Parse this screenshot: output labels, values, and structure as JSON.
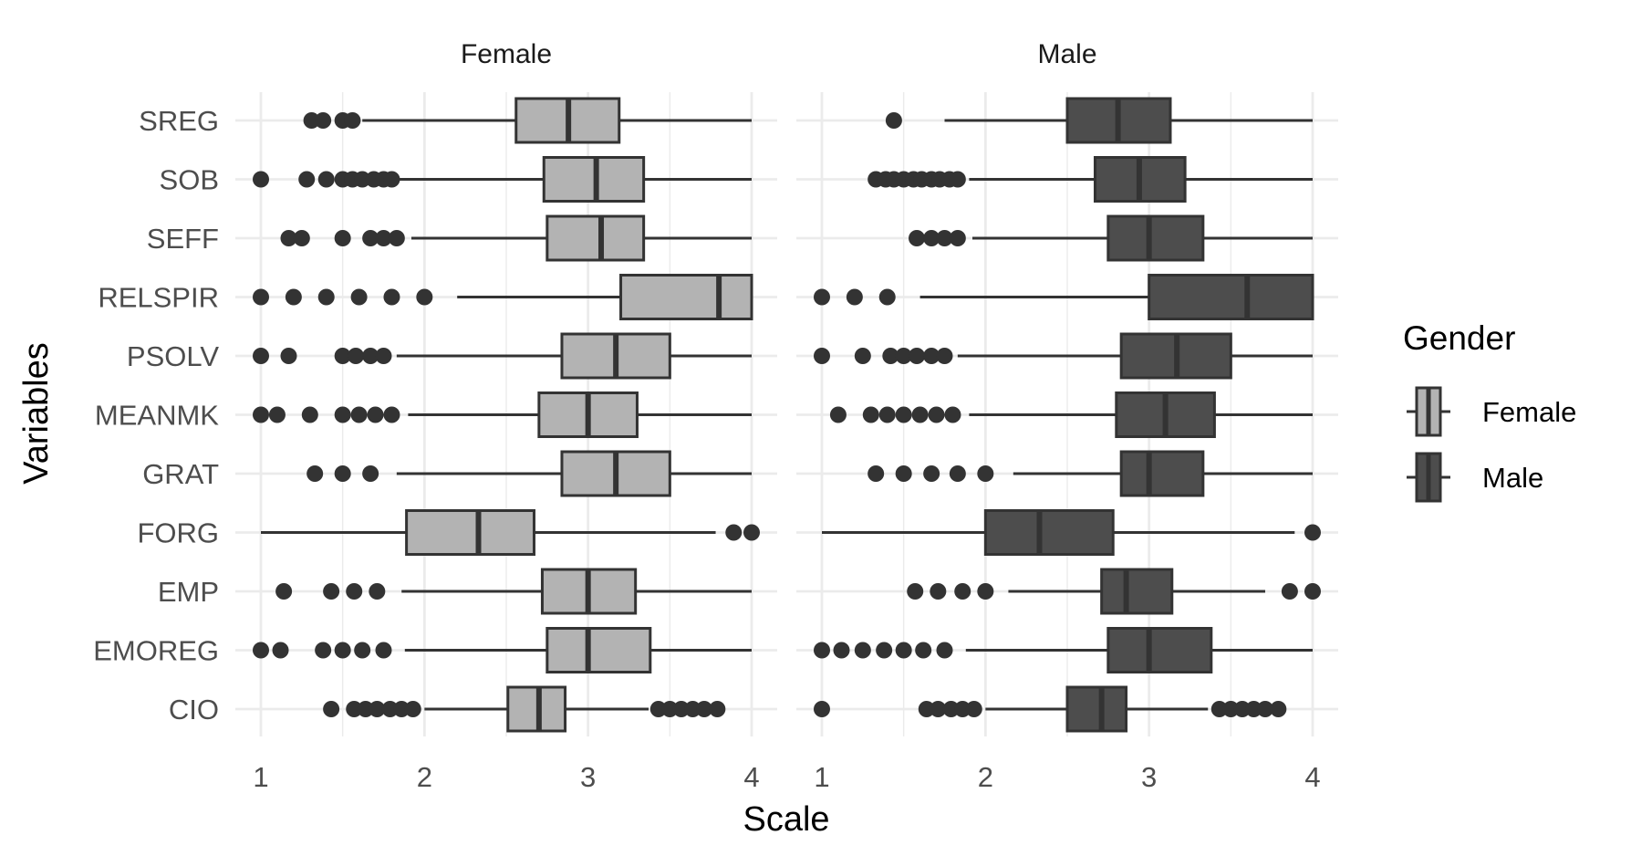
{
  "chart_data": {
    "type": "boxplot",
    "orientation": "horizontal",
    "xlabel": "Scale",
    "ylabel": "Variables",
    "xlim": [
      1,
      4
    ],
    "xticks": [
      1,
      2,
      3,
      4
    ],
    "grid": true,
    "categories": [
      "SREG",
      "SOB",
      "SEFF",
      "RELSPIR",
      "PSOLV",
      "MEANMK",
      "GRAT",
      "FORG",
      "EMP",
      "EMOREG",
      "CIO"
    ],
    "legend": {
      "title": "Gender",
      "position": "right",
      "entries": [
        {
          "label": "Female",
          "color": "#b3b3b3"
        },
        {
          "label": "Male",
          "color": "#4d4d4d"
        }
      ]
    },
    "colors": {
      "Female": "#b3b3b3",
      "Male": "#4d4d4d",
      "outline": "#333333",
      "grid": "#ebebeb"
    },
    "panels": [
      {
        "title": "Female",
        "series": "Female",
        "boxes": [
          {
            "category": "SREG",
            "whisker_low": 1.62,
            "q1": 2.56,
            "median": 2.88,
            "q3": 3.19,
            "whisker_high": 4.0,
            "outliers": [
              1.31,
              1.38,
              1.5,
              1.56
            ]
          },
          {
            "category": "SOB",
            "whisker_low": 1.81,
            "q1": 2.73,
            "median": 3.05,
            "q3": 3.34,
            "whisker_high": 4.0,
            "outliers": [
              1.0,
              1.28,
              1.4,
              1.5,
              1.56,
              1.62,
              1.69,
              1.75,
              1.8
            ]
          },
          {
            "category": "SEFF",
            "whisker_low": 1.92,
            "q1": 2.75,
            "median": 3.08,
            "q3": 3.34,
            "whisker_high": 4.0,
            "outliers": [
              1.17,
              1.25,
              1.5,
              1.67,
              1.75,
              1.83
            ]
          },
          {
            "category": "RELSPIR",
            "whisker_low": 2.2,
            "q1": 3.2,
            "median": 3.8,
            "q3": 4.0,
            "whisker_high": 4.0,
            "outliers": [
              1.0,
              1.2,
              1.4,
              1.6,
              1.8,
              2.0
            ]
          },
          {
            "category": "PSOLV",
            "whisker_low": 1.83,
            "q1": 2.84,
            "median": 3.17,
            "q3": 3.5,
            "whisker_high": 4.0,
            "outliers": [
              1.0,
              1.17,
              1.5,
              1.58,
              1.67,
              1.75
            ]
          },
          {
            "category": "MEANMK",
            "whisker_low": 1.9,
            "q1": 2.7,
            "median": 3.0,
            "q3": 3.3,
            "whisker_high": 4.0,
            "outliers": [
              1.0,
              1.1,
              1.3,
              1.5,
              1.6,
              1.7,
              1.8
            ]
          },
          {
            "category": "GRAT",
            "whisker_low": 1.83,
            "q1": 2.84,
            "median": 3.17,
            "q3": 3.5,
            "whisker_high": 4.0,
            "outliers": [
              1.33,
              1.5,
              1.67
            ]
          },
          {
            "category": "FORG",
            "whisker_low": 1.0,
            "q1": 1.89,
            "median": 2.33,
            "q3": 2.67,
            "whisker_high": 3.78,
            "outliers": [
              3.89,
              4.0
            ]
          },
          {
            "category": "EMP",
            "whisker_low": 1.86,
            "q1": 2.72,
            "median": 3.0,
            "q3": 3.29,
            "whisker_high": 4.0,
            "outliers": [
              1.14,
              1.43,
              1.57,
              1.71
            ]
          },
          {
            "category": "EMOREG",
            "whisker_low": 1.88,
            "q1": 2.75,
            "median": 3.0,
            "q3": 3.38,
            "whisker_high": 4.0,
            "outliers": [
              1.0,
              1.12,
              1.38,
              1.5,
              1.62,
              1.75
            ]
          },
          {
            "category": "CIO",
            "whisker_low": 2.0,
            "q1": 2.51,
            "median": 2.7,
            "q3": 2.86,
            "whisker_high": 3.37,
            "outliers": [
              1.43,
              1.57,
              1.64,
              1.71,
              1.79,
              1.86,
              1.93,
              3.43,
              3.5,
              3.57,
              3.64,
              3.71,
              3.79
            ]
          }
        ]
      },
      {
        "title": "Male",
        "series": "Male",
        "boxes": [
          {
            "category": "SREG",
            "whisker_low": 1.75,
            "q1": 2.5,
            "median": 2.81,
            "q3": 3.13,
            "whisker_high": 4.0,
            "outliers": [
              1.44
            ]
          },
          {
            "category": "SOB",
            "whisker_low": 1.9,
            "q1": 2.67,
            "median": 2.94,
            "q3": 3.22,
            "whisker_high": 4.0,
            "outliers": [
              1.33,
              1.39,
              1.44,
              1.5,
              1.56,
              1.61,
              1.67,
              1.72,
              1.78,
              1.83
            ]
          },
          {
            "category": "SEFF",
            "whisker_low": 1.92,
            "q1": 2.75,
            "median": 3.0,
            "q3": 3.33,
            "whisker_high": 4.0,
            "outliers": [
              1.58,
              1.67,
              1.75,
              1.83
            ]
          },
          {
            "category": "RELSPIR",
            "whisker_low": 1.6,
            "q1": 3.0,
            "median": 3.6,
            "q3": 4.0,
            "whisker_high": 4.0,
            "outliers": [
              1.0,
              1.2,
              1.4
            ]
          },
          {
            "category": "PSOLV",
            "whisker_low": 1.83,
            "q1": 2.83,
            "median": 3.17,
            "q3": 3.5,
            "whisker_high": 4.0,
            "outliers": [
              1.0,
              1.25,
              1.42,
              1.5,
              1.58,
              1.67,
              1.75
            ]
          },
          {
            "category": "MEANMK",
            "whisker_low": 1.9,
            "q1": 2.8,
            "median": 3.1,
            "q3": 3.4,
            "whisker_high": 4.0,
            "outliers": [
              1.1,
              1.3,
              1.4,
              1.5,
              1.6,
              1.7,
              1.8
            ]
          },
          {
            "category": "GRAT",
            "whisker_low": 2.17,
            "q1": 2.83,
            "median": 3.0,
            "q3": 3.33,
            "whisker_high": 4.0,
            "outliers": [
              1.33,
              1.5,
              1.67,
              1.83,
              2.0
            ]
          },
          {
            "category": "FORG",
            "whisker_low": 1.0,
            "q1": 2.0,
            "median": 2.33,
            "q3": 2.78,
            "whisker_high": 3.89,
            "outliers": [
              4.0
            ]
          },
          {
            "category": "EMP",
            "whisker_low": 2.14,
            "q1": 2.71,
            "median": 2.86,
            "q3": 3.14,
            "whisker_high": 3.71,
            "outliers": [
              1.57,
              1.71,
              1.86,
              2.0,
              3.86,
              4.0
            ]
          },
          {
            "category": "EMOREG",
            "whisker_low": 1.88,
            "q1": 2.75,
            "median": 3.0,
            "q3": 3.38,
            "whisker_high": 4.0,
            "outliers": [
              1.0,
              1.12,
              1.25,
              1.38,
              1.5,
              1.62,
              1.75
            ]
          },
          {
            "category": "CIO",
            "whisker_low": 2.0,
            "q1": 2.5,
            "median": 2.71,
            "q3": 2.86,
            "whisker_high": 3.36,
            "outliers": [
              1.0,
              1.64,
              1.71,
              1.79,
              1.86,
              1.93,
              3.43,
              3.5,
              3.57,
              3.64,
              3.71,
              3.79
            ]
          }
        ]
      }
    ]
  }
}
